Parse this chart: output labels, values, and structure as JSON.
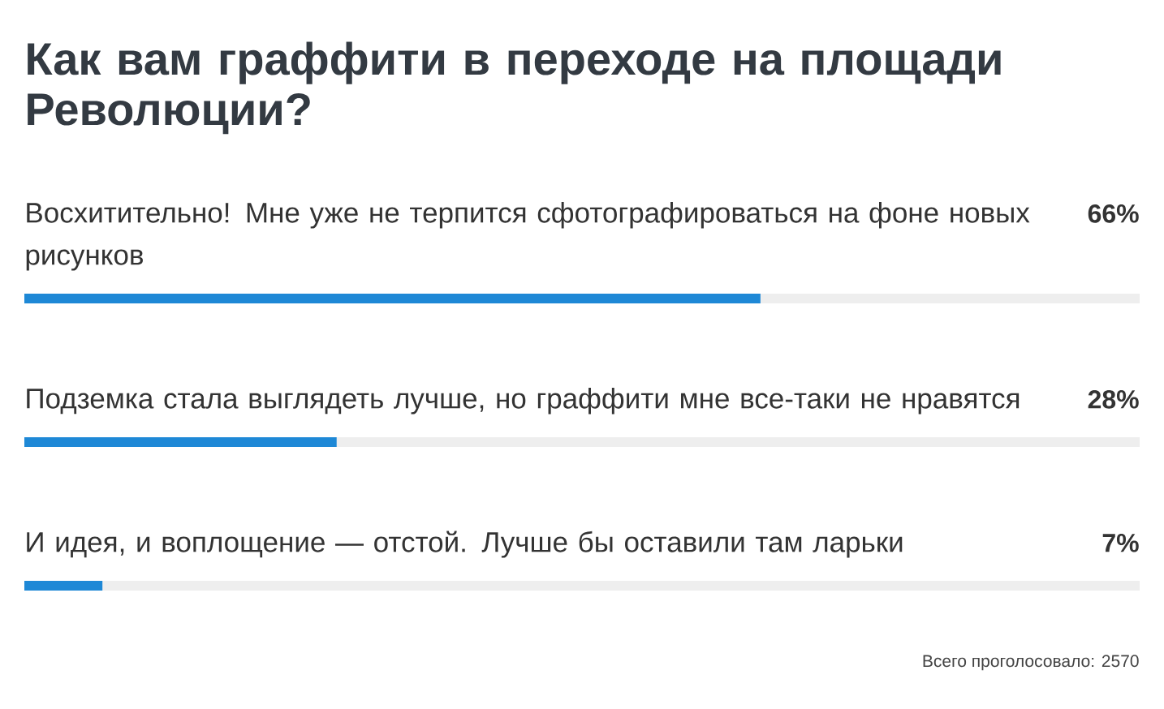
{
  "chart_data": {
    "type": "bar",
    "orientation": "horizontal",
    "title": "Как вам граффити в переходе на площади Революции?",
    "categories": [
      "Восхитительно! Мне уже не терпится сфотографироваться на фоне новых рисунков",
      "Подземка стала выглядеть лучше, но граффити мне все-таки не нравятся",
      "И идея, и воплощение — отстой. Лучше бы оставили там ларьки"
    ],
    "values": [
      66,
      28,
      7
    ],
    "value_labels": [
      "66%",
      "28%",
      "7%"
    ],
    "color": "#1e88d6",
    "xlim": [
      0,
      100
    ],
    "tick_labels": false,
    "annotations": [
      "Всего проголосовало: 2570"
    ]
  }
}
